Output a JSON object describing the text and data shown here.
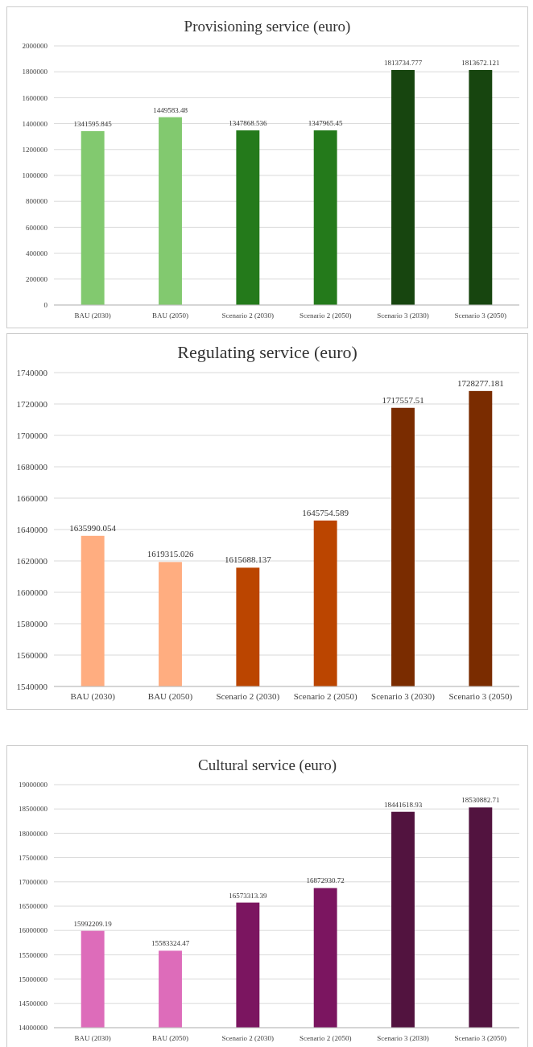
{
  "chart_data": [
    {
      "type": "bar",
      "title": "Provisioning service (euro)",
      "categories": [
        "BAU (2030)",
        "BAU (2050)",
        "Scenario 2 (2030)",
        "Scenario 2 (2050)",
        "Scenario 3 (2030)",
        "Scenario 3 (2050)"
      ],
      "values": [
        1341595.845,
        1449583.48,
        1347868.536,
        1347965.45,
        1813734.777,
        1813672.121
      ],
      "colors": [
        "#82c96f",
        "#82c96f",
        "#247a1b",
        "#247a1b",
        "#17450f",
        "#17450f"
      ],
      "ylim": [
        0,
        2000000
      ],
      "yticks": [
        0,
        200000,
        400000,
        600000,
        800000,
        1000000,
        1200000,
        1400000,
        1600000,
        1800000,
        2000000
      ],
      "grid": "y",
      "data_labels": true
    },
    {
      "type": "bar",
      "title": "Regulating service  (euro)",
      "categories": [
        "BAU (2030)",
        "BAU (2050)",
        "Scenario 2 (2030)",
        "Scenario 2 (2050)",
        "Scenario 3 (2030)",
        "Scenario 3 (2050)"
      ],
      "values": [
        1635990.054,
        1619315.026,
        1615688.137,
        1645754.589,
        1717557.51,
        1728277.181
      ],
      "colors": [
        "#ffad80",
        "#ffad80",
        "#bb4500",
        "#bb4500",
        "#7a2c00",
        "#7a2c00"
      ],
      "ylim": [
        1540000,
        1740000
      ],
      "yticks": [
        1540000,
        1560000,
        1580000,
        1600000,
        1620000,
        1640000,
        1660000,
        1680000,
        1700000,
        1720000,
        1740000
      ],
      "grid": "y",
      "data_labels": true
    },
    {
      "type": "bar",
      "title": "Cultural service  (euro)",
      "categories": [
        "BAU (2030)",
        "BAU (2050)",
        "Scenario 2 (2030)",
        "Scenario 2 (2050)",
        "Scenario 3 (2030)",
        "Scenario 3 (2050)"
      ],
      "values": [
        15992209.19,
        15583324.47,
        16573313.39,
        16872930.72,
        18441618.93,
        18530882.71
      ],
      "colors": [
        "#dd6cba",
        "#dd6cba",
        "#7b1560",
        "#7b1560",
        "#52133f",
        "#52133f"
      ],
      "ylim": [
        14000000,
        19000000
      ],
      "yticks": [
        14000000,
        14500000,
        15000000,
        15500000,
        16000000,
        16500000,
        17000000,
        17500000,
        18000000,
        18500000,
        19000000
      ],
      "grid": "y",
      "data_labels": true
    }
  ]
}
